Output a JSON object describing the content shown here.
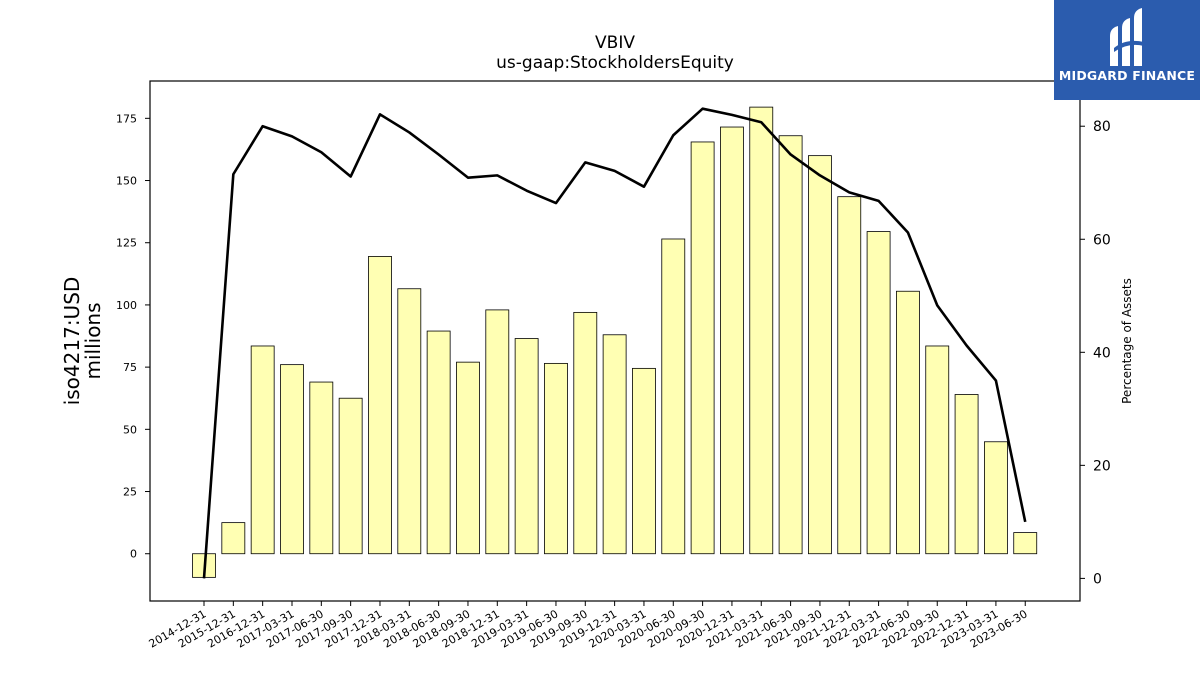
{
  "title": "VBIV",
  "subtitle": "us-gaap:StockholdersEquity",
  "logo": {
    "text": "MIDGARD FINANCE",
    "color": "#2b5cae"
  },
  "chart_data": {
    "type": "bar",
    "title": "VBIV",
    "subtitle": "us-gaap:StockholdersEquity",
    "ylabel": "iso4217:USD\nmillions",
    "y2label": "Percentage of Assets",
    "ylim": [
      -19,
      190
    ],
    "y2lim": [
      -4,
      88
    ],
    "yticks": [
      0,
      25,
      50,
      75,
      100,
      125,
      150,
      175
    ],
    "y2ticks": [
      0,
      20,
      40,
      60,
      80
    ],
    "categories": [
      "2014-12-31",
      "2015-12-31",
      "2016-12-31",
      "2017-03-31",
      "2017-06-30",
      "2017-09-30",
      "2017-12-31",
      "2018-03-31",
      "2018-06-30",
      "2018-09-30",
      "2018-12-31",
      "2019-03-31",
      "2019-06-30",
      "2019-09-30",
      "2019-12-31",
      "2020-03-31",
      "2020-06-30",
      "2020-09-30",
      "2020-12-31",
      "2021-03-31",
      "2021-06-30",
      "2021-09-30",
      "2021-12-31",
      "2022-03-31",
      "2022-06-30",
      "2022-09-30",
      "2022-12-31",
      "2023-03-31",
      "2023-06-30"
    ],
    "series": [
      {
        "kind": "bar",
        "axis": "left",
        "color": "#ffffb3",
        "values": [
          -9.5,
          12.5,
          83.5,
          76,
          69,
          62.5,
          119.5,
          106.5,
          89.5,
          77,
          98,
          86.5,
          76.5,
          97,
          88,
          74.5,
          126.5,
          165.5,
          171.5,
          179.5,
          168,
          160,
          143.5,
          129.5,
          105.5,
          83.5,
          64,
          45,
          8.5
        ]
      },
      {
        "kind": "line",
        "axis": "right",
        "color": "#000000",
        "values": [
          0,
          71.5,
          80,
          78.2,
          75.4,
          71.1,
          82.1,
          78.9,
          75,
          70.9,
          71.3,
          68.6,
          66.4,
          73.6,
          72.1,
          69.3,
          78.4,
          83.1,
          82,
          80.7,
          75,
          71.3,
          68.3,
          66.8,
          61.2,
          48.3,
          41.2,
          35,
          10
        ]
      }
    ]
  }
}
